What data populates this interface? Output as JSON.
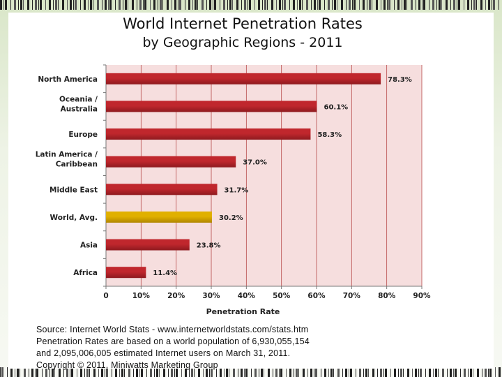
{
  "chart_data": {
    "type": "bar",
    "orientation": "horizontal",
    "title": "World Internet Penetration Rates",
    "subtitle": "by Geographic Regions - 2011",
    "categories": [
      [
        "North America"
      ],
      [
        "Oceania  /",
        "Australia"
      ],
      [
        "Europe"
      ],
      [
        "Latin America /",
        "Caribbean"
      ],
      [
        "Middle East"
      ],
      [
        "World, Avg."
      ],
      [
        "Asia"
      ],
      [
        "Africa"
      ]
    ],
    "values": [
      78.3,
      60.1,
      58.3,
      37.0,
      31.7,
      30.2,
      23.8,
      11.4
    ],
    "value_labels": [
      "78.3%",
      "60.1%",
      "58.3%",
      "37.0%",
      "31.7%",
      "30.2%",
      "23.8%",
      "11.4%"
    ],
    "highlight_index": 5,
    "xlabel": "Penetration Rate",
    "ylabel": "",
    "xlim": [
      0,
      90
    ],
    "xticks": [
      0,
      10,
      20,
      30,
      40,
      50,
      60,
      70,
      80,
      90
    ],
    "xtick_labels": [
      "0",
      "10%",
      "20%",
      "30%",
      "40%",
      "50%",
      "60%",
      "70%",
      "80%",
      "90%"
    ],
    "grid": true,
    "colors": {
      "bar": "#c0272d",
      "bar_dark": "#8e1a1f",
      "highlight": "#e0b000",
      "highlight_dark": "#b08600",
      "plot_bg": "#f6dede",
      "grid": "#b74a4a"
    }
  },
  "source_lines": [
    "Source: Internet World Stats - www.internetworldstats.com/stats.htm",
    "Penetration Rates are based on a world population of 6,930,055,154",
    "and 2,095,006,005 estimated Internet users on March 31, 2011.",
    "Copyright © 2011, Miniwatts Marketing Group"
  ]
}
